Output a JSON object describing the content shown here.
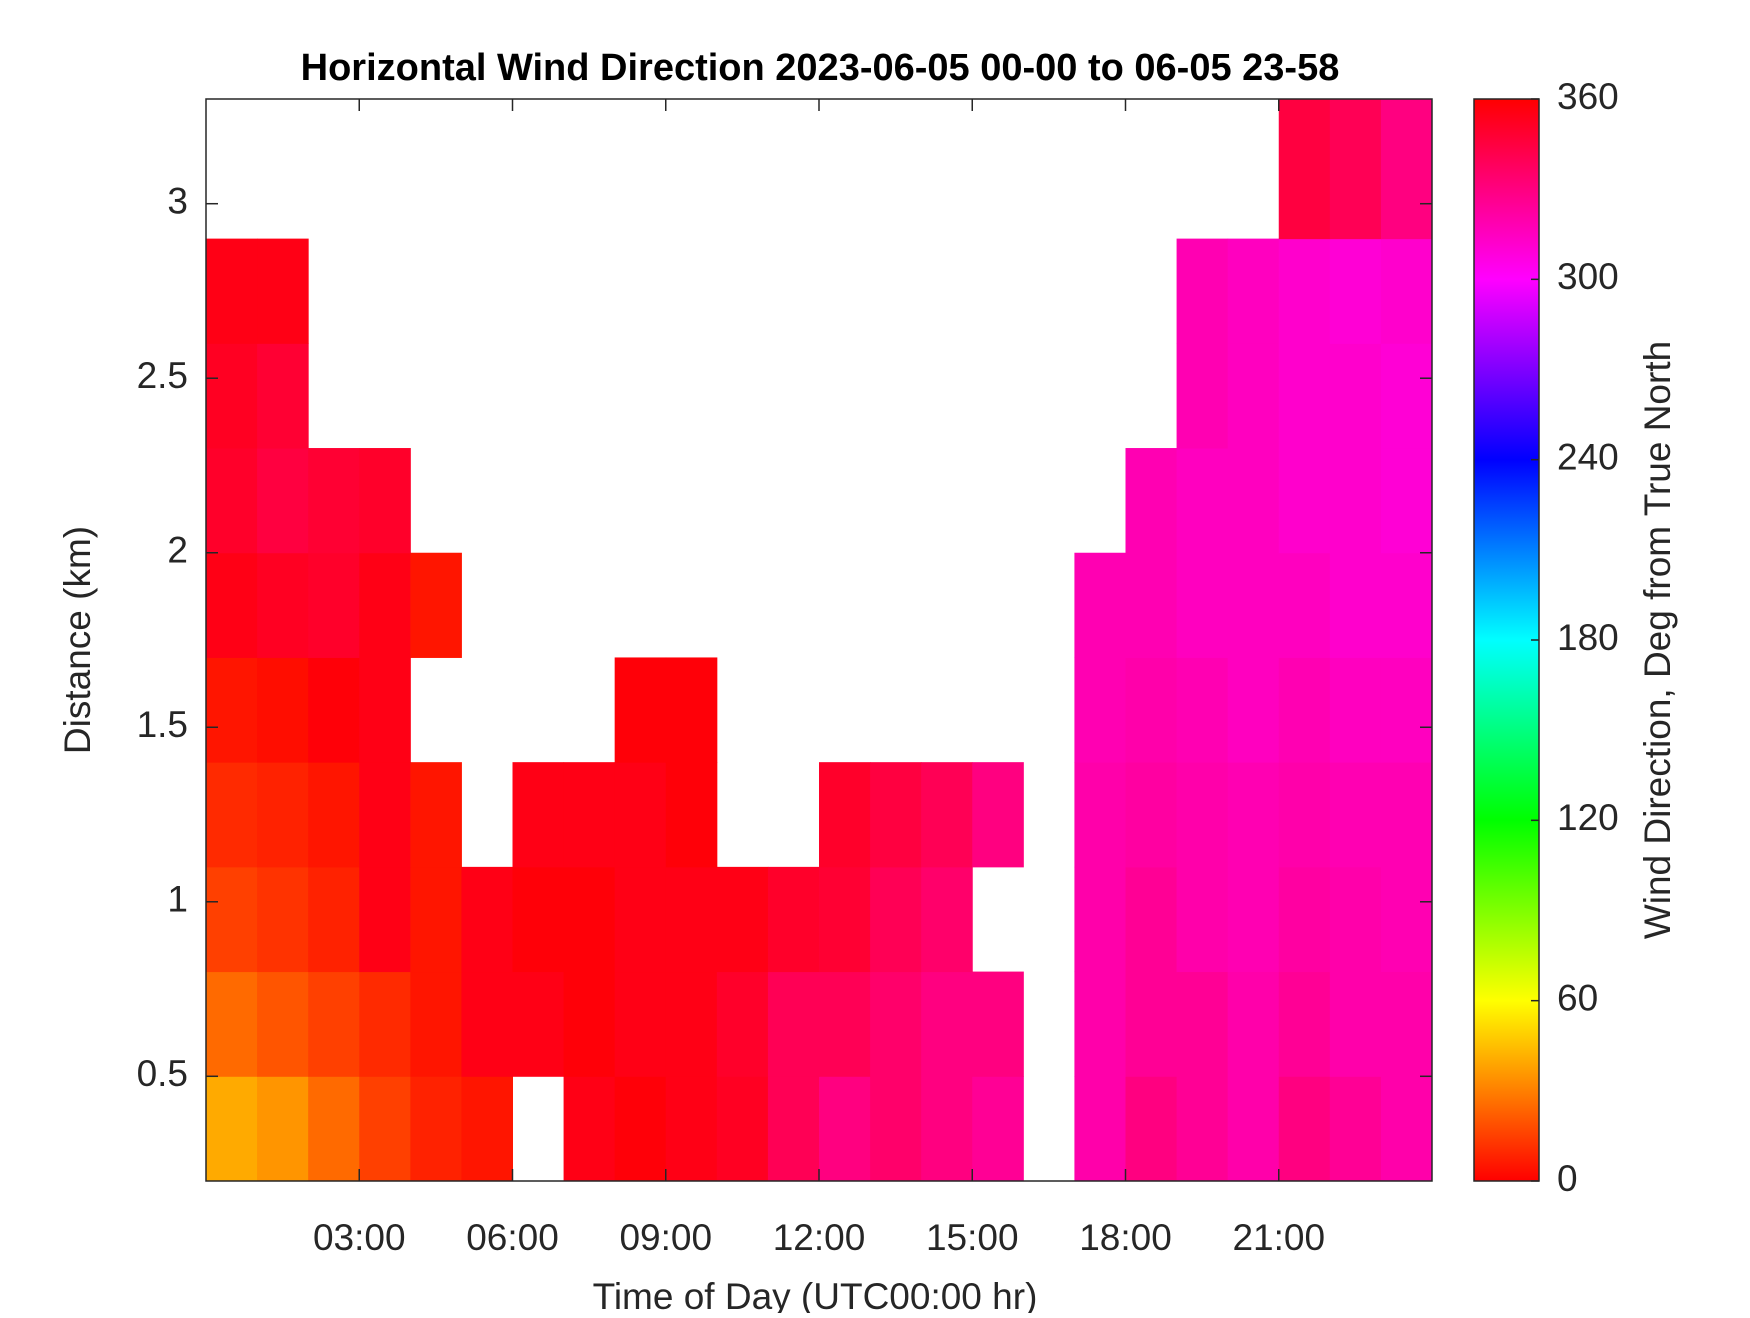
{
  "chart_data": {
    "type": "heatmap",
    "title": "Horizontal Wind Direction 2023-06-05 00-00 to 06-05 23-58",
    "xlabel": "Time of Day (UTC00:00 hr)",
    "ylabel": "Distance (km)",
    "xlim": [
      0,
      24
    ],
    "ylim": [
      0.2,
      3.3
    ],
    "xticks": [
      {
        "value": 3,
        "label": "03:00"
      },
      {
        "value": 6,
        "label": "06:00"
      },
      {
        "value": 9,
        "label": "09:00"
      },
      {
        "value": 12,
        "label": "12:00"
      },
      {
        "value": 15,
        "label": "15:00"
      },
      {
        "value": 18,
        "label": "18:00"
      },
      {
        "value": 21,
        "label": "21:00"
      }
    ],
    "yticks": [
      0.5,
      1,
      1.5,
      2,
      2.5,
      3
    ],
    "x_bins": [
      0,
      1,
      2,
      3,
      4,
      5,
      6,
      7,
      8,
      9,
      10,
      11,
      12,
      13,
      14,
      15,
      16,
      17,
      18,
      19,
      20,
      21,
      22,
      23,
      24
    ],
    "y_bins": [
      0.2,
      0.5,
      0.8,
      1.1,
      1.4,
      1.7,
      2.0,
      2.3,
      2.6,
      2.9,
      3.3
    ],
    "values": [
      [
        40,
        35,
        25,
        15,
        8,
        5,
        null,
        355,
        358,
        355,
        352,
        340,
        330,
        335,
        330,
        325,
        null,
        320,
        330,
        325,
        320,
        330,
        325,
        320
      ],
      [
        25,
        20,
        15,
        10,
        5,
        355,
        355,
        358,
        355,
        355,
        350,
        340,
        340,
        335,
        330,
        330,
        null,
        320,
        325,
        325,
        320,
        325,
        320,
        320
      ],
      [
        15,
        12,
        8,
        355,
        5,
        355,
        358,
        358,
        355,
        355,
        355,
        350,
        348,
        340,
        335,
        null,
        null,
        320,
        325,
        320,
        318,
        322,
        320,
        318
      ],
      [
        10,
        8,
        5,
        355,
        5,
        null,
        355,
        355,
        355,
        358,
        null,
        null,
        350,
        345,
        340,
        330,
        null,
        320,
        322,
        320,
        318,
        320,
        318,
        318
      ],
      [
        5,
        3,
        358,
        355,
        null,
        null,
        null,
        null,
        358,
        358,
        null,
        null,
        null,
        null,
        null,
        null,
        null,
        318,
        320,
        318,
        315,
        318,
        315,
        315
      ],
      [
        355,
        352,
        350,
        355,
        5,
        null,
        null,
        null,
        null,
        null,
        null,
        null,
        null,
        null,
        null,
        null,
        null,
        318,
        318,
        315,
        315,
        315,
        312,
        312
      ],
      [
        350,
        345,
        348,
        350,
        null,
        null,
        null,
        null,
        null,
        null,
        null,
        null,
        null,
        null,
        null,
        null,
        null,
        null,
        318,
        315,
        315,
        312,
        312,
        310
      ],
      [
        352,
        348,
        null,
        null,
        null,
        null,
        null,
        null,
        null,
        null,
        null,
        null,
        null,
        null,
        null,
        null,
        null,
        null,
        null,
        318,
        315,
        312,
        312,
        310
      ],
      [
        355,
        355,
        null,
        null,
        null,
        null,
        null,
        null,
        null,
        null,
        null,
        null,
        null,
        null,
        null,
        null,
        null,
        null,
        null,
        318,
        315,
        312,
        310,
        312
      ],
      [
        null,
        null,
        null,
        null,
        null,
        null,
        null,
        null,
        null,
        null,
        null,
        null,
        null,
        null,
        null,
        null,
        null,
        null,
        null,
        null,
        null,
        345,
        340,
        330
      ]
    ],
    "colorbar": {
      "label": "Wind Direction, Deg from True North",
      "lim": [
        0,
        360
      ],
      "ticks": [
        0,
        60,
        120,
        180,
        240,
        300,
        360
      ],
      "colormap": "hsv"
    }
  }
}
